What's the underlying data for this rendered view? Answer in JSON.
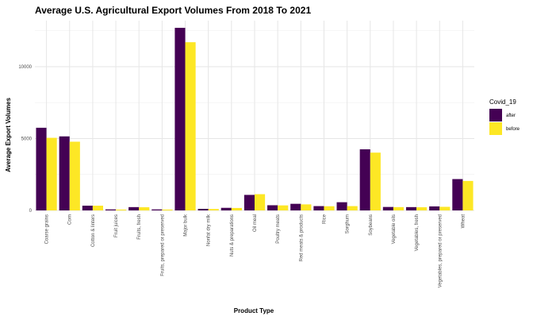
{
  "chart_data": {
    "type": "bar",
    "title": "Average U.S. Agricultural Export Volumes From 2018 To 2021",
    "xlabel": "Product Type",
    "ylabel": "Average Export Volumes",
    "ylim": [
      0,
      13200
    ],
    "yticks": [
      0,
      5000,
      10000
    ],
    "grid": true,
    "legend": {
      "title": "Covid_19",
      "placement": "right"
    },
    "categories": [
      "Coarse grains",
      "Corn",
      "Cotton & linters",
      "Fruit juices",
      "Fruits, fresh",
      "Fruits, prepared or preserved",
      "Major bulk",
      "Nonfat dry milk",
      "Nuts & preparations",
      "Oil meal",
      "Poultry meats",
      "Red meats & products",
      "Rice",
      "Sorghum",
      "Soybeans",
      "Vegetable oils",
      "Vegetables, fresh",
      "Vegetables, prepared or preserved",
      "Wheat"
    ],
    "series": [
      {
        "name": "after",
        "color": "#440154",
        "values": [
          5750,
          5150,
          330,
          70,
          230,
          70,
          12700,
          110,
          180,
          1080,
          360,
          460,
          300,
          570,
          4250,
          240,
          230,
          280,
          2180
        ]
      },
      {
        "name": "before",
        "color": "#FDE725",
        "values": [
          5050,
          4780,
          330,
          60,
          220,
          60,
          11700,
          100,
          170,
          1130,
          350,
          420,
          290,
          300,
          4020,
          230,
          220,
          250,
          2050
        ]
      }
    ]
  }
}
